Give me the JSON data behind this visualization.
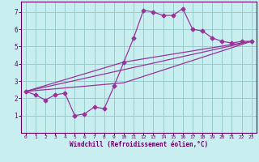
{
  "bg_color": "#c8eef0",
  "line_color": "#993399",
  "grid_color": "#99cccc",
  "xlabel": "Windchill (Refroidissement éolien,°C)",
  "xlabel_color": "#660066",
  "tick_color": "#660066",
  "spine_color": "#660066",
  "xlim": [
    -0.5,
    23.5
  ],
  "ylim": [
    0,
    7.6
  ],
  "xticks": [
    0,
    1,
    2,
    3,
    4,
    5,
    6,
    7,
    8,
    9,
    10,
    11,
    12,
    13,
    14,
    15,
    16,
    17,
    18,
    19,
    20,
    21,
    22,
    23
  ],
  "yticks": [
    1,
    2,
    3,
    4,
    5,
    6,
    7
  ],
  "line1_x": [
    0,
    1,
    2,
    3,
    4,
    5,
    6,
    7,
    8,
    9,
    10,
    11,
    12,
    13,
    14,
    15,
    16,
    17,
    18,
    19,
    20,
    21,
    22,
    23
  ],
  "line1_y": [
    2.4,
    2.2,
    1.9,
    2.2,
    2.3,
    1.0,
    1.1,
    1.5,
    1.4,
    2.7,
    4.1,
    5.5,
    7.1,
    7.0,
    6.8,
    6.8,
    7.2,
    6.0,
    5.9,
    5.5,
    5.3,
    5.2,
    5.3,
    5.3
  ],
  "line2_x": [
    0,
    23
  ],
  "line2_y": [
    2.4,
    5.3
  ],
  "line3_x": [
    0,
    10,
    23
  ],
  "line3_y": [
    2.4,
    4.1,
    5.3
  ],
  "line4_x": [
    0,
    10,
    23
  ],
  "line4_y": [
    2.4,
    2.9,
    5.3
  ]
}
